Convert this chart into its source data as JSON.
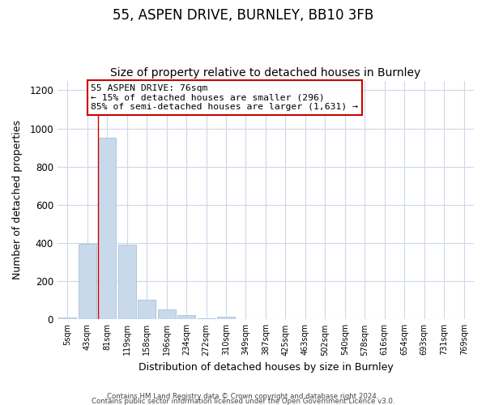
{
  "title": "55, ASPEN DRIVE, BURNLEY, BB10 3FB",
  "subtitle": "Size of property relative to detached houses in Burnley",
  "xlabel": "Distribution of detached houses by size in Burnley",
  "ylabel": "Number of detached properties",
  "bar_labels": [
    "5sqm",
    "43sqm",
    "81sqm",
    "119sqm",
    "158sqm",
    "196sqm",
    "234sqm",
    "272sqm",
    "310sqm",
    "349sqm",
    "387sqm",
    "425sqm",
    "463sqm",
    "502sqm",
    "540sqm",
    "578sqm",
    "616sqm",
    "654sqm",
    "693sqm",
    "731sqm",
    "769sqm"
  ],
  "bar_values": [
    10,
    395,
    950,
    390,
    105,
    53,
    22,
    5,
    12,
    0,
    0,
    0,
    0,
    0,
    0,
    0,
    0,
    0,
    0,
    0,
    0
  ],
  "bar_color": "#c9d9ec",
  "bar_edge_color": "#a8c0d8",
  "annotation_text_line1": "55 ASPEN DRIVE: 76sqm",
  "annotation_text_line2": "← 15% of detached houses are smaller (296)",
  "annotation_text_line3": "85% of semi-detached houses are larger (1,631) →",
  "annotation_box_color": "#ffffff",
  "annotation_box_edge_color": "#cc0000",
  "ylim": [
    0,
    1250
  ],
  "yticks": [
    0,
    200,
    400,
    600,
    800,
    1000,
    1200
  ],
  "footer_line1": "Contains HM Land Registry data © Crown copyright and database right 2024.",
  "footer_line2": "Contains public sector information licensed under the Open Government Licence v3.0.",
  "bg_color": "#ffffff",
  "grid_color": "#cdd8e8",
  "title_fontsize": 12,
  "subtitle_fontsize": 10,
  "red_line_x": 2
}
